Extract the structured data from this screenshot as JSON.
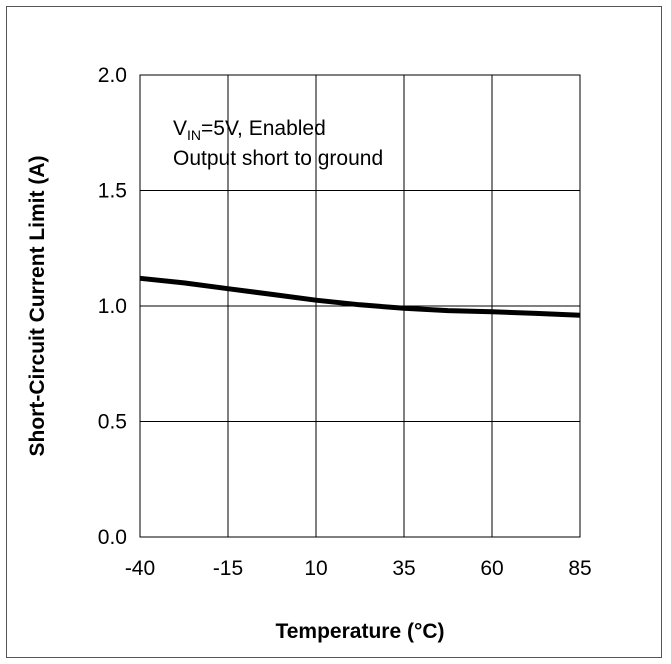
{
  "chart_data": {
    "type": "line",
    "title": "",
    "xlabel": "Temperature (°C)",
    "ylabel": "Short-Circuit Current Limit (A)",
    "xlim": [
      -40,
      85
    ],
    "ylim": [
      0.0,
      2.0
    ],
    "xticks": [
      "-40",
      "-15",
      "10",
      "35",
      "60",
      "85"
    ],
    "yticks": [
      "0.0",
      "0.5",
      "1.0",
      "1.5",
      "2.0"
    ],
    "grid": true,
    "annotation": {
      "line1_main": "V",
      "line1_sub": "IN",
      "line1_rest": "=5V, Enabled",
      "line2": "Output short to ground"
    },
    "series": [
      {
        "x": [
          -40,
          -27.5,
          -15,
          -2.5,
          10,
          22.5,
          35,
          47.5,
          60,
          72.5,
          85
        ],
        "y": [
          1.12,
          1.1,
          1.075,
          1.05,
          1.025,
          1.005,
          0.99,
          0.98,
          0.975,
          0.968,
          0.96
        ]
      }
    ],
    "colors": {
      "line": "#000000",
      "grid": "#000000",
      "frame": "#555555"
    }
  }
}
